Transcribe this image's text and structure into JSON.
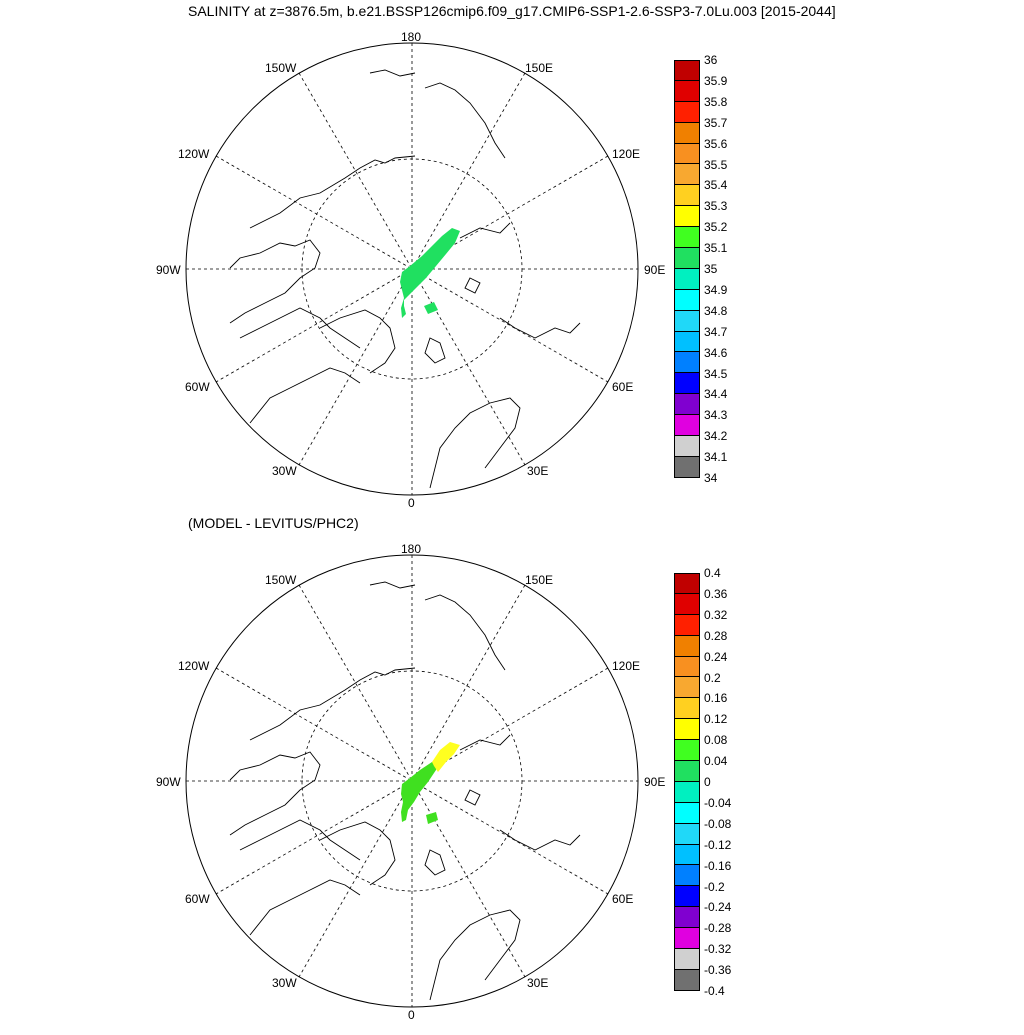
{
  "title": "SALINITY at z=3876.5m, b.e21.BSSP126cmip6.f09_g17.CMIP6-SSP1-2.6-SSP3-7.0Lu.003 [2015-2044]",
  "subtitle": "(MODEL - LEVITUS/PHC2)",
  "longitude_labels": {
    "top": "180",
    "bottom": "0",
    "left": "90W",
    "right": "90E",
    "upper_left_1": "150W",
    "upper_left_2": "120W",
    "lower_left_1": "60W",
    "lower_left_2": "30W",
    "upper_right_1": "150E",
    "upper_right_2": "120E",
    "lower_right_1": "60E",
    "lower_right_2": "30E"
  },
  "colorbar_top": {
    "labels": [
      "36",
      "35.9",
      "35.8",
      "35.7",
      "35.6",
      "35.5",
      "35.4",
      "35.3",
      "35.2",
      "35.1",
      "35",
      "34.9",
      "34.8",
      "34.7",
      "34.6",
      "34.5",
      "34.4",
      "34.3",
      "34.2",
      "34.1",
      "34"
    ],
    "colors": [
      "#c00000",
      "#e00000",
      "#ff2000",
      "#f08000",
      "#f89020",
      "#f8a830",
      "#ffd020",
      "#ffff00",
      "#40ff20",
      "#20e060",
      "#00f0c0",
      "#00ffff",
      "#20d8f8",
      "#00c0ff",
      "#0080ff",
      "#0000ff",
      "#8000d0",
      "#e000e0",
      "#d0d0d0",
      "#707070"
    ]
  },
  "colorbar_bottom": {
    "labels": [
      "0.4",
      "0.36",
      "0.32",
      "0.28",
      "0.24",
      "0.2",
      "0.16",
      "0.12",
      "0.08",
      "0.04",
      "0",
      "-0.04",
      "-0.08",
      "-0.12",
      "-0.16",
      "-0.2",
      "-0.24",
      "-0.28",
      "-0.32",
      "-0.36",
      "-0.4"
    ],
    "colors": [
      "#c00000",
      "#e00000",
      "#ff2000",
      "#f08000",
      "#f89020",
      "#f8a830",
      "#ffd020",
      "#ffff00",
      "#40ff20",
      "#20e060",
      "#00f0c0",
      "#00ffff",
      "#20d8f8",
      "#00c0ff",
      "#0080ff",
      "#0000ff",
      "#8000d0",
      "#e000e0",
      "#d0d0d0",
      "#707070"
    ]
  },
  "field_colors": {
    "top_green": "#20e060",
    "bottom_green": "#40e020",
    "bottom_yellow": "#ffff20"
  }
}
